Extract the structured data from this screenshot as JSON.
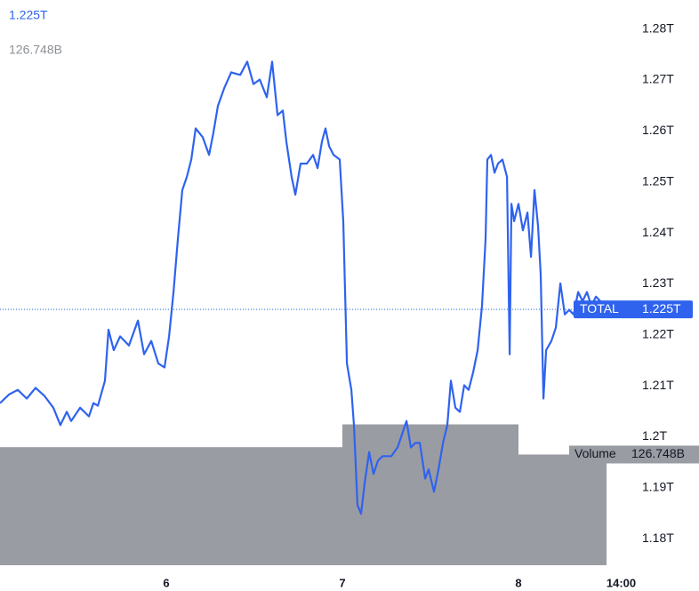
{
  "chart_data": {
    "type": "line",
    "x": [
      5.056,
      5.107,
      5.157,
      5.208,
      5.258,
      5.309,
      5.359,
      5.399,
      5.435,
      5.46,
      5.511,
      5.561,
      5.586,
      5.612,
      5.652,
      5.672,
      5.702,
      5.738,
      5.788,
      5.839,
      5.874,
      5.915,
      5.955,
      5.99,
      6.016,
      6.041,
      6.066,
      6.091,
      6.117,
      6.142,
      6.167,
      6.207,
      6.243,
      6.268,
      6.293,
      6.329,
      6.369,
      6.42,
      6.46,
      6.495,
      6.531,
      6.571,
      6.601,
      6.632,
      6.662,
      6.682,
      6.712,
      6.733,
      6.763,
      6.798,
      6.834,
      6.859,
      6.884,
      6.904,
      6.925,
      6.95,
      6.985,
      7.005,
      7.026,
      7.051,
      7.066,
      7.086,
      7.106,
      7.127,
      7.152,
      7.177,
      7.202,
      7.228,
      7.278,
      7.313,
      7.339,
      7.364,
      7.389,
      7.414,
      7.44,
      7.47,
      7.49,
      7.52,
      7.546,
      7.571,
      7.596,
      7.616,
      7.642,
      7.667,
      7.692,
      7.717,
      7.743,
      7.768,
      7.793,
      7.813,
      7.823,
      7.844,
      7.864,
      7.884,
      7.909,
      7.935,
      7.95,
      7.96,
      7.975,
      8.0,
      8.025,
      8.051,
      8.071,
      8.091,
      8.111,
      8.126,
      8.142,
      8.157,
      8.187,
      8.212,
      8.238,
      8.263,
      8.288,
      8.313,
      8.339,
      8.364,
      8.389,
      8.414,
      8.44,
      8.465,
      8.49
    ],
    "series": [
      {
        "name": "TOTAL",
        "color": "#2f63ee",
        "last_value_label": "1.225T",
        "values": [
          1.2066,
          1.2083,
          1.2092,
          1.2075,
          1.2096,
          1.208,
          1.2057,
          1.2023,
          1.2049,
          1.2031,
          1.2057,
          1.204,
          1.2066,
          1.2061,
          1.211,
          1.221,
          1.217,
          1.2197,
          1.2179,
          1.2228,
          1.2162,
          1.2188,
          1.2144,
          1.2136,
          1.2197,
          1.2284,
          1.2388,
          1.2484,
          1.251,
          1.2544,
          1.2605,
          1.2588,
          1.2553,
          1.2597,
          1.2649,
          1.2684,
          1.2715,
          1.271,
          1.2736,
          1.2692,
          1.2701,
          1.2666,
          1.2736,
          1.2631,
          1.264,
          1.2579,
          1.251,
          1.2475,
          1.2536,
          1.2536,
          1.2553,
          1.2527,
          1.2579,
          1.2605,
          1.257,
          1.2553,
          1.2544,
          1.2423,
          1.2144,
          1.2092,
          1.2023,
          1.1866,
          1.1849,
          1.191,
          1.197,
          1.1927,
          1.1953,
          1.1962,
          1.1962,
          1.1979,
          1.2005,
          1.2031,
          1.1979,
          1.1988,
          1.1988,
          1.1918,
          1.1936,
          1.1892,
          1.1936,
          1.1988,
          1.2023,
          1.211,
          1.2057,
          1.2049,
          1.2101,
          1.2092,
          1.2127,
          1.217,
          1.2257,
          1.2388,
          1.2544,
          1.2553,
          1.2518,
          1.2536,
          1.2544,
          1.251,
          1.2162,
          1.2457,
          1.2423,
          1.2457,
          1.2405,
          1.244,
          1.2353,
          1.2484,
          1.2414,
          1.2318,
          1.2075,
          1.217,
          1.2188,
          1.2214,
          1.2301,
          1.224,
          1.2249,
          1.224,
          1.2284,
          1.2266,
          1.2284,
          1.2257,
          1.2275,
          1.2266,
          1.225
        ]
      }
    ],
    "volume": {
      "name": "Volume",
      "color": "#9a9ca3",
      "bins": [
        5.0,
        7,
        8,
        8.5
      ],
      "values": [
        134.9,
        160.2,
        126.748
      ],
      "last_value_label": "126.748B",
      "vlim": [
        0,
        631
      ]
    },
    "xlim": [
      5.056,
      8.616
    ],
    "xticks": [
      6,
      7,
      8,
      {
        "value": 8.5833,
        "label": "14:00"
      }
    ],
    "ylim": [
      1.1741,
      1.2857
    ],
    "yticks": [
      {
        "value": 1.28,
        "label": "1.28T"
      },
      {
        "value": 1.27,
        "label": "1.27T"
      },
      {
        "value": 1.26,
        "label": "1.26T"
      },
      {
        "value": 1.25,
        "label": "1.25T"
      },
      {
        "value": 1.24,
        "label": "1.24T"
      },
      {
        "value": 1.23,
        "label": "1.23T"
      },
      {
        "value": 1.22,
        "label": "1.22T"
      },
      {
        "value": 1.21,
        "label": "1.21T"
      },
      {
        "value": 1.2,
        "label": "1.2T"
      },
      {
        "value": 1.19,
        "label": "1.19T"
      },
      {
        "value": 1.18,
        "label": "1.18T"
      }
    ]
  }
}
